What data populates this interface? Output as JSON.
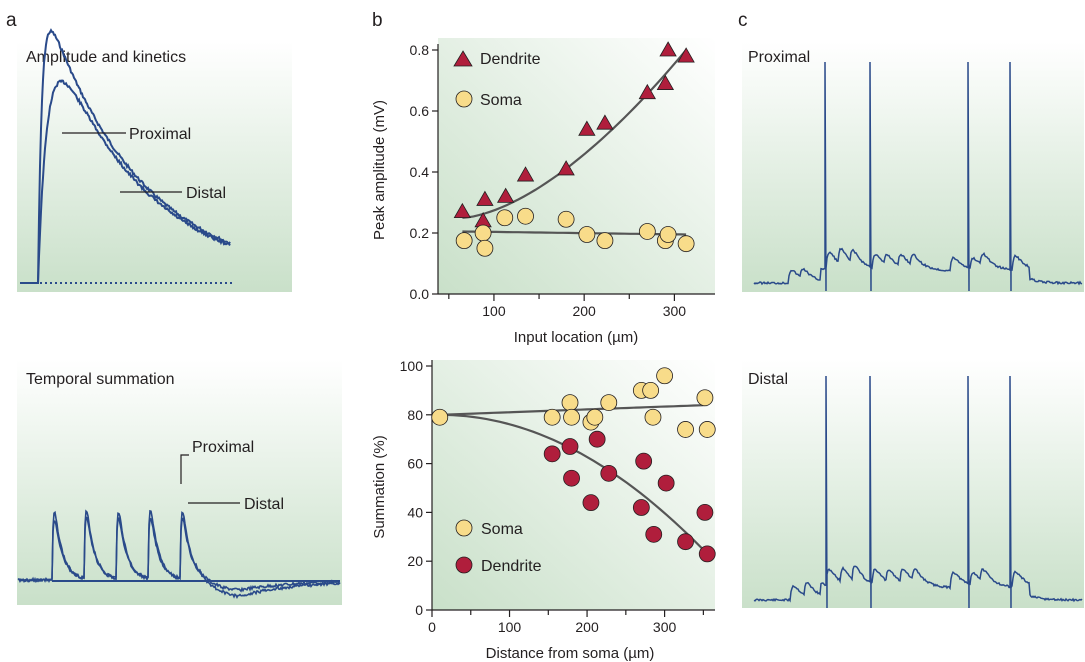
{
  "panel_letters": {
    "a": "a",
    "b": "b",
    "c": "c"
  },
  "colors": {
    "trace": "#2a4a8a",
    "panel_bg_top": "#ffffff",
    "panel_bg_bottom": "#c9e0c9",
    "dendrite": "#b01e3c",
    "soma": "#f8dc8a",
    "fit_line": "#555555",
    "axis": "#231f20"
  },
  "panel_a": {
    "top": {
      "title": "Amplitude and kinetics",
      "label_proximal": "Proximal",
      "label_distal": "Distal"
    },
    "bottom": {
      "title": "Temporal summation",
      "label_proximal": "Proximal",
      "label_distal": "Distal"
    }
  },
  "panel_c": {
    "top": {
      "title": "Proximal"
    },
    "bottom": {
      "title": "Distal"
    }
  },
  "chart_data": [
    {
      "type": "scatter",
      "panel": "b-top",
      "xlabel": "Input location (µm)",
      "ylabel": "Peak amplitude (mV)",
      "xlim": [
        38,
        345
      ],
      "ylim": [
        0,
        0.8
      ],
      "xticks": [
        100,
        200,
        300
      ],
      "yticks": [
        "0.0",
        "0.2",
        "0.4",
        "0.6",
        "0.8"
      ],
      "legend_position": "top-left",
      "series": [
        {
          "name": "Dendrite",
          "marker": "triangle",
          "x": [
            65,
            88,
            90,
            113,
            135,
            180,
            203,
            223,
            270,
            290,
            293,
            313
          ],
          "y": [
            0.27,
            0.24,
            0.31,
            0.32,
            0.39,
            0.41,
            0.54,
            0.56,
            0.66,
            0.69,
            0.8,
            0.78
          ]
        },
        {
          "name": "Soma",
          "marker": "circle",
          "x": [
            67,
            88,
            90,
            112,
            135,
            180,
            203,
            223,
            270,
            290,
            293,
            313
          ],
          "y": [
            0.175,
            0.2,
            0.15,
            0.25,
            0.255,
            0.245,
            0.195,
            0.175,
            0.205,
            0.175,
            0.195,
            0.165
          ]
        }
      ],
      "fits": [
        {
          "series": "Dendrite",
          "x": [
            65,
            313
          ],
          "y": [
            0.25,
            0.8
          ]
        },
        {
          "series": "Soma",
          "x": [
            65,
            313
          ],
          "y": [
            0.205,
            0.195
          ]
        }
      ]
    },
    {
      "type": "scatter",
      "panel": "b-bottom",
      "xlabel": "Distance from soma (µm)",
      "ylabel": "Summation (%)",
      "xlim": [
        0,
        365
      ],
      "ylim": [
        0,
        100
      ],
      "xticks": [
        0,
        100,
        200,
        300
      ],
      "yticks": [
        0,
        20,
        40,
        60,
        80,
        100
      ],
      "legend_position": "bottom-left",
      "series": [
        {
          "name": "Soma",
          "marker": "circle",
          "x": [
            10,
            155,
            178,
            180,
            205,
            210,
            228,
            270,
            282,
            285,
            300,
            327,
            352,
            355
          ],
          "y": [
            79,
            79,
            85,
            79,
            77,
            79,
            85,
            90,
            90,
            79,
            96,
            74,
            87,
            74
          ]
        },
        {
          "name": "Dendrite",
          "marker": "circle",
          "x": [
            155,
            178,
            180,
            205,
            213,
            228,
            270,
            273,
            286,
            302,
            327,
            352,
            355
          ],
          "y": [
            64,
            67,
            54,
            44,
            70,
            56,
            42,
            61,
            31,
            52,
            28,
            40,
            23
          ]
        }
      ],
      "fits": [
        {
          "series": "Soma",
          "x": [
            10,
            355
          ],
          "y": [
            80,
            84
          ]
        },
        {
          "series": "Dendrite",
          "x": [
            10,
            355
          ],
          "y": [
            80,
            23
          ]
        }
      ]
    }
  ]
}
